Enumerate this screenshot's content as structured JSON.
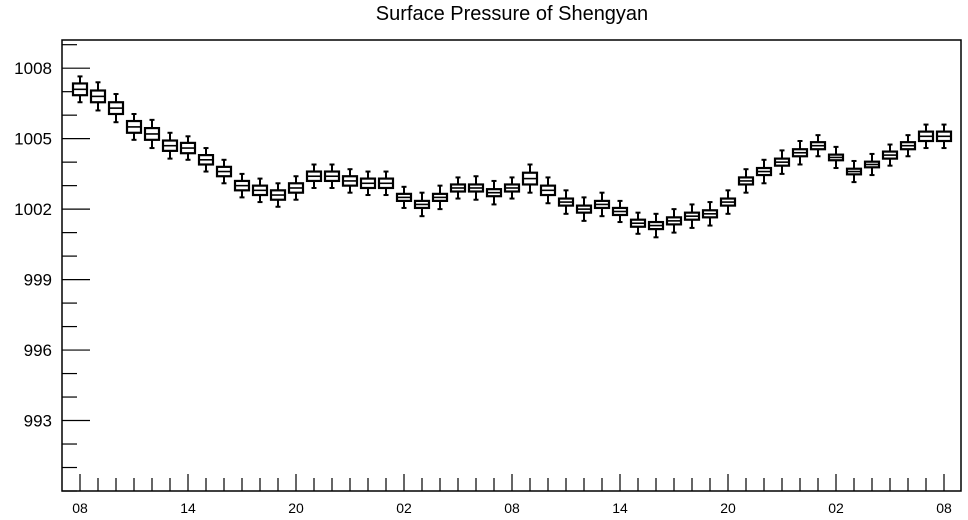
{
  "chart_data": {
    "type": "boxplot",
    "title": "Surface Pressure of Shengyan",
    "xlabel": "",
    "ylabel": "",
    "ylim": [
      990.0,
      1009.2
    ],
    "y_ticks": [
      1008,
      1005,
      1002,
      999,
      996,
      993
    ],
    "x_tick_labels": [
      "08",
      "14",
      "20",
      "02",
      "08",
      "14",
      "20",
      "02",
      "08"
    ],
    "x_tick_label_index": [
      0,
      6,
      12,
      18,
      24,
      30,
      36,
      42,
      48
    ],
    "x_count": 49,
    "grid": false,
    "series": [
      {
        "median": [
          1007.1,
          1006.8,
          1006.3,
          1005.5,
          1005.2,
          1004.7,
          1004.6,
          1004.1,
          1003.6,
          1003.0,
          1002.8,
          1002.6,
          1002.9,
          1003.4,
          1003.4,
          1003.2,
          1003.1,
          1003.1,
          1002.5,
          1002.2,
          1002.5,
          1002.9,
          1002.9,
          1002.7,
          1002.9,
          1003.3,
          1002.8,
          1002.3,
          1002.0,
          1002.2,
          1001.9,
          1001.4,
          1001.3,
          1001.5,
          1001.7,
          1001.8,
          1002.3,
          1003.2,
          1003.6,
          1004.0,
          1004.4,
          1004.7,
          1004.2,
          1003.6,
          1003.9,
          1004.3,
          1004.7,
          1005.1,
          1005.1
        ],
        "spread": [
          0.25,
          0.25,
          0.25,
          0.25,
          0.25,
          0.22,
          0.22,
          0.2,
          0.2,
          0.2,
          0.2,
          0.2,
          0.2,
          0.2,
          0.2,
          0.2,
          0.2,
          0.2,
          0.15,
          0.15,
          0.15,
          0.15,
          0.15,
          0.15,
          0.15,
          0.25,
          0.2,
          0.15,
          0.15,
          0.15,
          0.15,
          0.15,
          0.15,
          0.15,
          0.15,
          0.15,
          0.15,
          0.15,
          0.15,
          0.15,
          0.15,
          0.15,
          0.12,
          0.12,
          0.12,
          0.15,
          0.15,
          0.2,
          0.2
        ],
        "whisker": [
          0.55,
          0.6,
          0.6,
          0.55,
          0.6,
          0.55,
          0.5,
          0.5,
          0.5,
          0.5,
          0.5,
          0.5,
          0.5,
          0.5,
          0.5,
          0.5,
          0.5,
          0.5,
          0.45,
          0.5,
          0.5,
          0.45,
          0.5,
          0.5,
          0.45,
          0.6,
          0.55,
          0.5,
          0.5,
          0.5,
          0.45,
          0.45,
          0.5,
          0.5,
          0.5,
          0.5,
          0.5,
          0.5,
          0.5,
          0.5,
          0.5,
          0.45,
          0.45,
          0.45,
          0.45,
          0.45,
          0.45,
          0.5,
          0.5
        ]
      }
    ]
  }
}
